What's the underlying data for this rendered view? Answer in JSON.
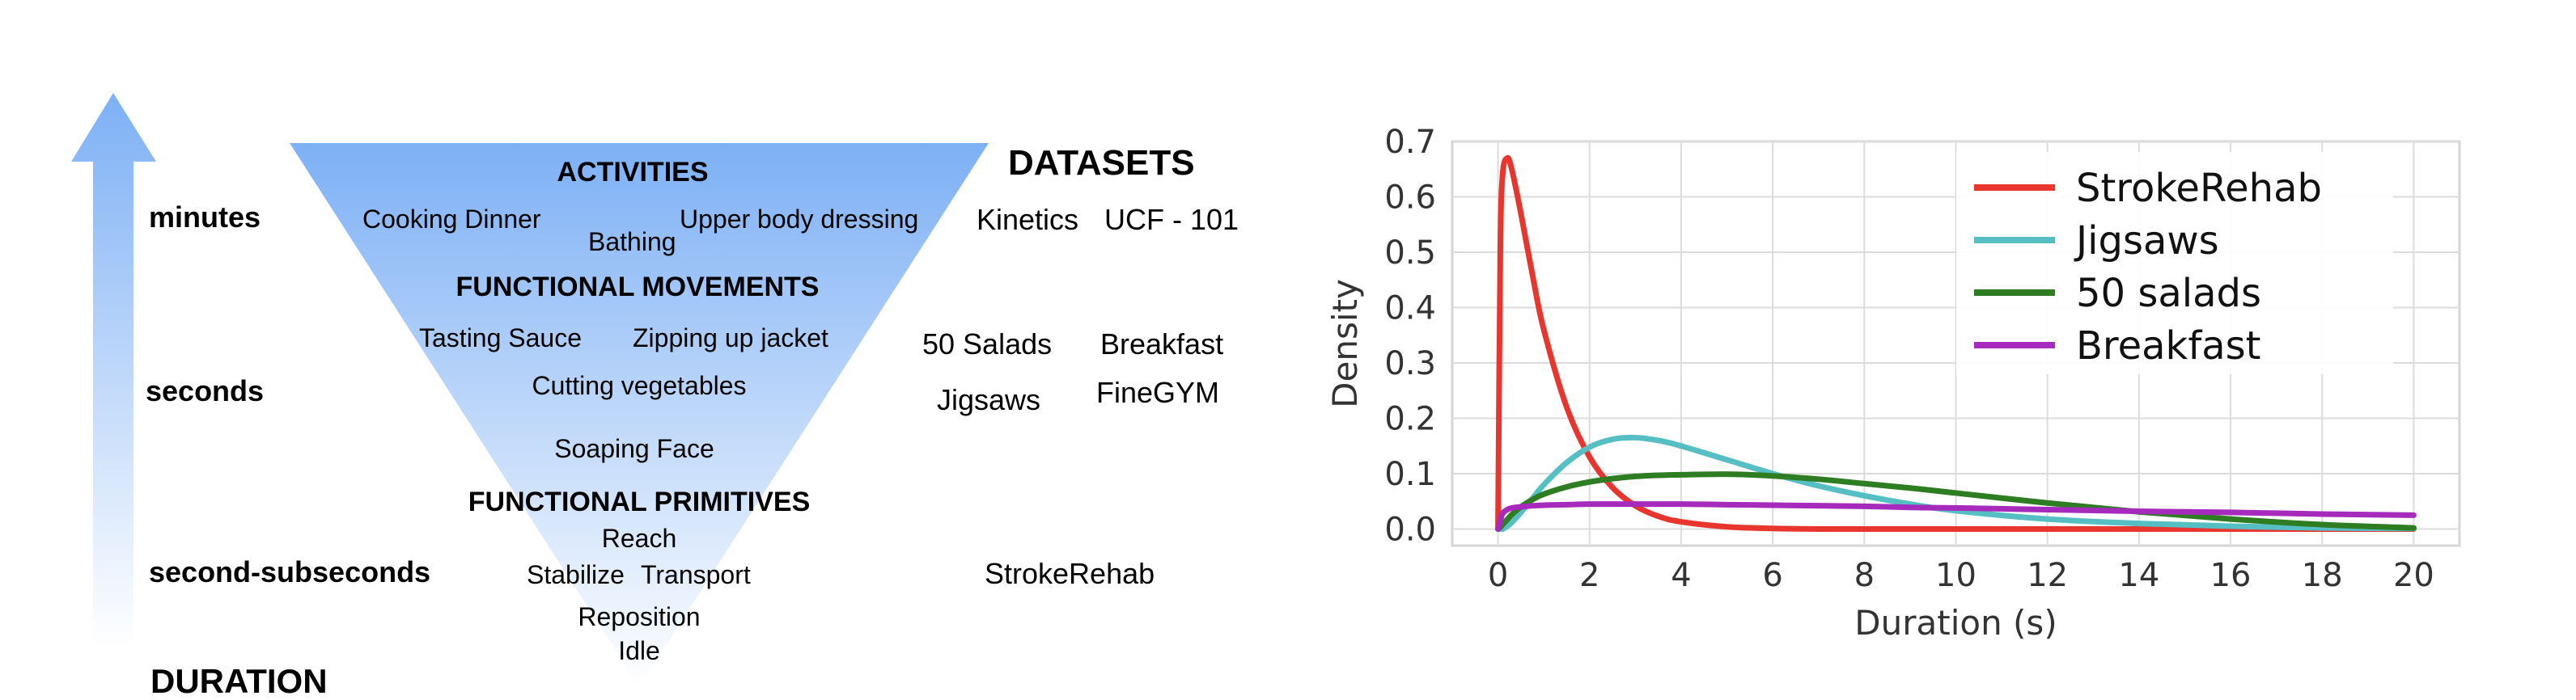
{
  "diagram": {
    "duration_levels": [
      "minutes",
      "seconds",
      "second-subseconds"
    ],
    "duration_label": "DURATION",
    "datasets_header": "DATASETS",
    "hierarchy": {
      "activities": {
        "title": "ACTIVITIES",
        "items": [
          "Cooking Dinner",
          "Bathing",
          "Upper body dressing"
        ]
      },
      "functional_movements": {
        "title": "FUNCTIONAL MOVEMENTS",
        "items": [
          "Tasting Sauce",
          "Zipping up jacket",
          "Cutting vegetables",
          "Soaping Face"
        ]
      },
      "functional_primitives": {
        "title": "FUNCTIONAL PRIMITIVES",
        "items": [
          "Reach",
          "Stabilize",
          "Transport",
          "Reposition",
          "Idle"
        ]
      }
    },
    "datasets": {
      "minutes": [
        "Kinetics",
        "UCF - 101"
      ],
      "seconds": [
        "50 Salads",
        "Breakfast",
        "Jigsaws",
        "FineGYM"
      ],
      "second_subseconds": [
        "StrokeRehab"
      ]
    },
    "colors": {
      "gradient_top": "#7db0f5",
      "gradient_bottom": "#ffffff",
      "arrow_top": "#7db0f5"
    }
  },
  "chart_data": {
    "type": "line",
    "xlabel": "Duration (s)",
    "ylabel": "Density",
    "xlim": [
      -1,
      21
    ],
    "ylim": [
      -0.03,
      0.7
    ],
    "xticks": [
      0,
      2,
      4,
      6,
      8,
      10,
      12,
      14,
      16,
      18,
      20
    ],
    "yticks": [
      0.0,
      0.1,
      0.2,
      0.3,
      0.4,
      0.5,
      0.6,
      0.7
    ],
    "grid": true,
    "legend_position": "top-right",
    "x": [
      0.0,
      0.05,
      0.1,
      0.2,
      0.3,
      0.5,
      0.75,
      1.0,
      1.5,
      2.0,
      2.5,
      3.0,
      3.5,
      4.0,
      5.0,
      6.0,
      7.0,
      8.0,
      9.0,
      10.0,
      12.0,
      14.0,
      16.0,
      18.0,
      20.0
    ],
    "series": [
      {
        "name": "StrokeRehab",
        "color": "#e8352e",
        "values": [
          0.0,
          0.5,
          0.64,
          0.67,
          0.65,
          0.57,
          0.46,
          0.36,
          0.22,
          0.13,
          0.075,
          0.042,
          0.023,
          0.013,
          0.004,
          0.001,
          0.0,
          0.0,
          0.0,
          0.0,
          0.0,
          0.0,
          0.0,
          0.0,
          0.0
        ]
      },
      {
        "name": "Jigsaws",
        "color": "#55bfc4",
        "values": [
          0.0,
          0.0,
          0.0,
          0.005,
          0.012,
          0.03,
          0.055,
          0.08,
          0.12,
          0.148,
          0.162,
          0.165,
          0.16,
          0.15,
          0.125,
          0.1,
          0.078,
          0.06,
          0.045,
          0.033,
          0.018,
          0.01,
          0.005,
          0.002,
          0.001
        ]
      },
      {
        "name": "50 salads",
        "color": "#2e7d22",
        "values": [
          0.0,
          0.003,
          0.008,
          0.017,
          0.026,
          0.04,
          0.053,
          0.063,
          0.076,
          0.085,
          0.091,
          0.095,
          0.097,
          0.098,
          0.099,
          0.096,
          0.09,
          0.082,
          0.074,
          0.065,
          0.047,
          0.031,
          0.018,
          0.008,
          0.002
        ]
      },
      {
        "name": "Breakfast",
        "color": "#a62bbd",
        "values": [
          0.0,
          0.015,
          0.028,
          0.035,
          0.038,
          0.04,
          0.042,
          0.043,
          0.044,
          0.045,
          0.045,
          0.045,
          0.045,
          0.045,
          0.044,
          0.043,
          0.042,
          0.041,
          0.039,
          0.038,
          0.035,
          0.032,
          0.03,
          0.027,
          0.025
        ]
      }
    ]
  }
}
